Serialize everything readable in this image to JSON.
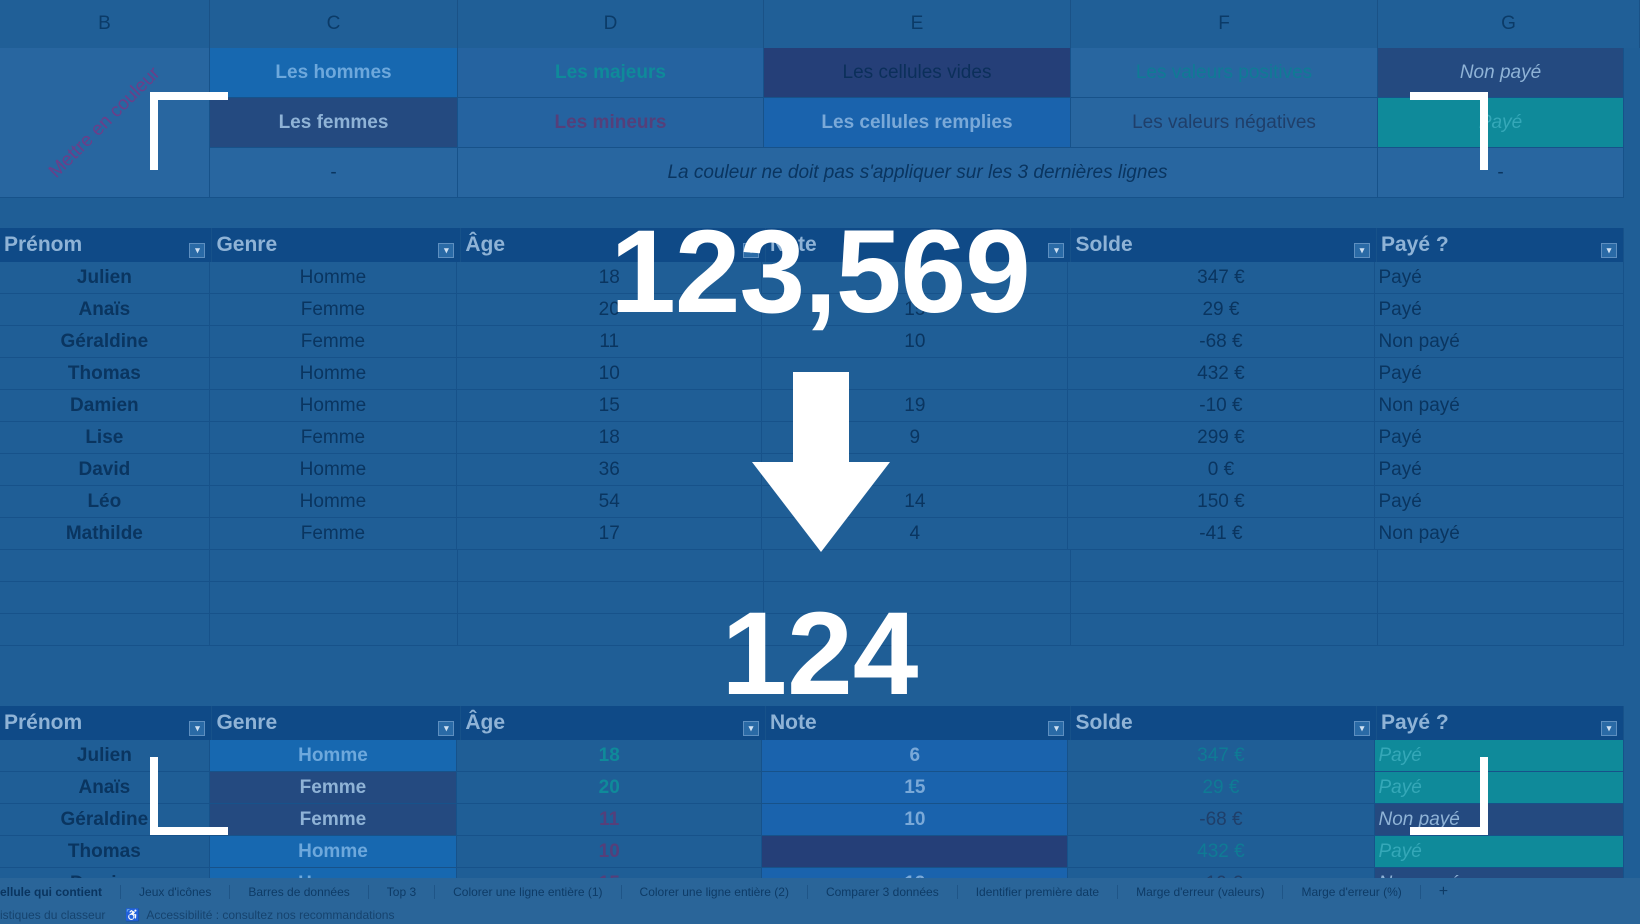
{
  "columns": [
    "B",
    "C",
    "D",
    "E",
    "F",
    "G"
  ],
  "legend": {
    "diagonal_label": "Mettre en couleur",
    "row1": [
      "Les hommes",
      "Les majeurs",
      "Les cellules vides",
      "Les valeurs positives",
      "Non payé"
    ],
    "row2": [
      "Les femmes",
      "Les mineurs",
      "Les cellules remplies",
      "Les valeurs négatives",
      "Payé"
    ],
    "row3_left": "-",
    "row3_note": "La couleur ne doit pas s'appliquer sur les 3 dernières lignes",
    "row3_right": "-"
  },
  "table_headers": [
    "Prénom",
    "Genre",
    "Âge",
    "Note",
    "Solde",
    "Payé ?"
  ],
  "rows": [
    {
      "prenom": "Julien",
      "genre": "Homme",
      "age": "18",
      "note": "6",
      "solde": "347 €",
      "paye": "Payé"
    },
    {
      "prenom": "Anaïs",
      "genre": "Femme",
      "age": "20",
      "note": "15",
      "solde": "29 €",
      "paye": "Payé"
    },
    {
      "prenom": "Géraldine",
      "genre": "Femme",
      "age": "11",
      "note": "10",
      "solde": "-68 €",
      "paye": "Non payé"
    },
    {
      "prenom": "Thomas",
      "genre": "Homme",
      "age": "10",
      "note": "",
      "solde": "432 €",
      "paye": "Payé"
    },
    {
      "prenom": "Damien",
      "genre": "Homme",
      "age": "15",
      "note": "19",
      "solde": "-10 €",
      "paye": "Non payé"
    },
    {
      "prenom": "Lise",
      "genre": "Femme",
      "age": "18",
      "note": "9",
      "solde": "299 €",
      "paye": "Payé"
    },
    {
      "prenom": "David",
      "genre": "Homme",
      "age": "36",
      "note": "",
      "solde": "0 €",
      "paye": "Payé"
    },
    {
      "prenom": "Léo",
      "genre": "Homme",
      "age": "54",
      "note": "14",
      "solde": "150 €",
      "paye": "Payé"
    },
    {
      "prenom": "Mathilde",
      "genre": "Femme",
      "age": "17",
      "note": "4",
      "solde": "-41 €",
      "paye": "Non payé"
    }
  ],
  "overlay": {
    "top_value": "123,569",
    "bottom_value": "124"
  },
  "sheet_tabs": [
    "ellule qui contient",
    "Jeux d'icônes",
    "Barres de données",
    "Top 3",
    "Colorer une ligne entière (1)",
    "Colorer une ligne entière (2)",
    "Comparer 3 données",
    "Identifier première date",
    "Marge d'erreur (valeurs)",
    "Marge d'erreur (%)"
  ],
  "add_tab": "+",
  "status": {
    "left": "istiques du classeur",
    "accessibility": "Accessibilité : consultez nos recommandations"
  },
  "colors": {
    "overlay_tint": "#1f5e96",
    "teal": "#0f8a9a",
    "navy": "#244a80",
    "bright": "#1b6bb0",
    "white": "#ffffff"
  }
}
